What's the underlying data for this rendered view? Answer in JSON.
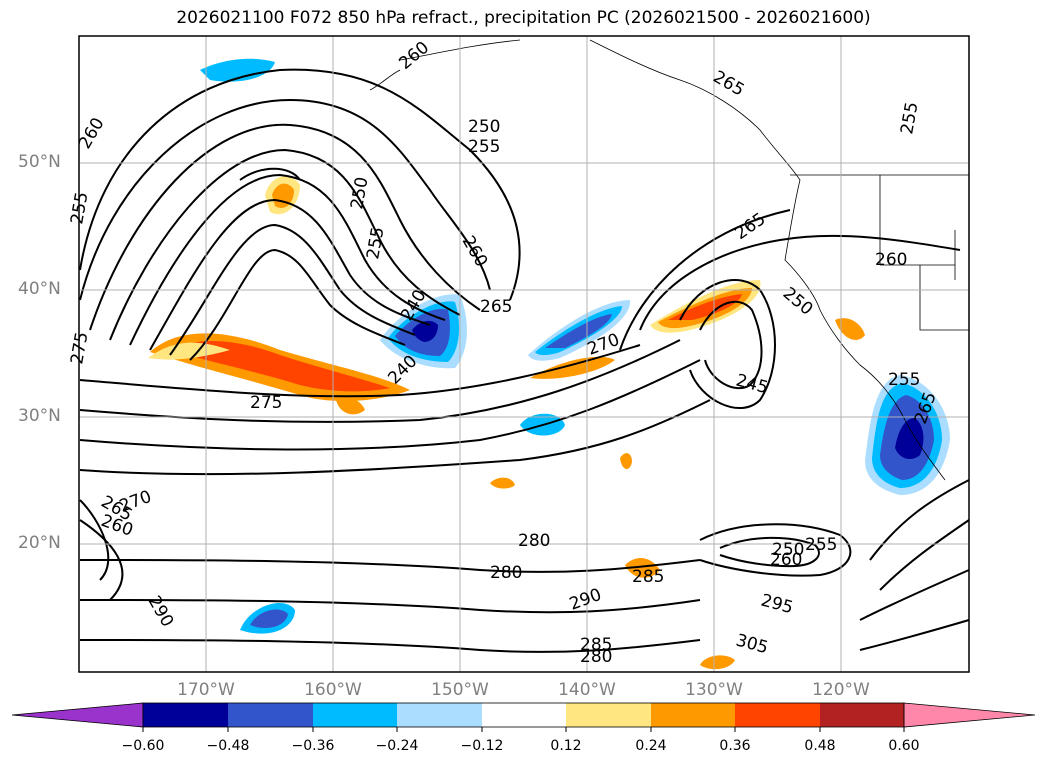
{
  "title": "2026021100 F072 850 hPa refract., precipitation PC (2026021500 - 2026021600)",
  "lat_labels": [
    "50°N",
    "40°N",
    "30°N",
    "20°N"
  ],
  "lon_labels": [
    "170°W",
    "160°W",
    "150°W",
    "140°W",
    "130°W",
    "120°W"
  ],
  "contour_labels": [
    "260",
    "265",
    "250",
    "255",
    "260",
    "265",
    "255",
    "250",
    "255",
    "260",
    "265",
    "270",
    "240",
    "240",
    "245",
    "250",
    "255",
    "260",
    "275",
    "275",
    "280",
    "280",
    "285",
    "290",
    "295",
    "305",
    "290",
    "285",
    "280",
    "265",
    "270",
    "260",
    "255",
    "250",
    "260",
    "265",
    "255"
  ],
  "colorbar": {
    "ticks": [
      "−0.60",
      "−0.48",
      "−0.36",
      "−0.24",
      "−0.12",
      "0.12",
      "0.24",
      "0.36",
      "0.48",
      "0.60"
    ],
    "colors": [
      "#9933cc",
      "#000099",
      "#3355cc",
      "#00bbff",
      "#aaddff",
      "#ffffff",
      "#ffe680",
      "#ff9900",
      "#ff4400",
      "#b22222",
      "#ff88aa"
    ]
  }
}
